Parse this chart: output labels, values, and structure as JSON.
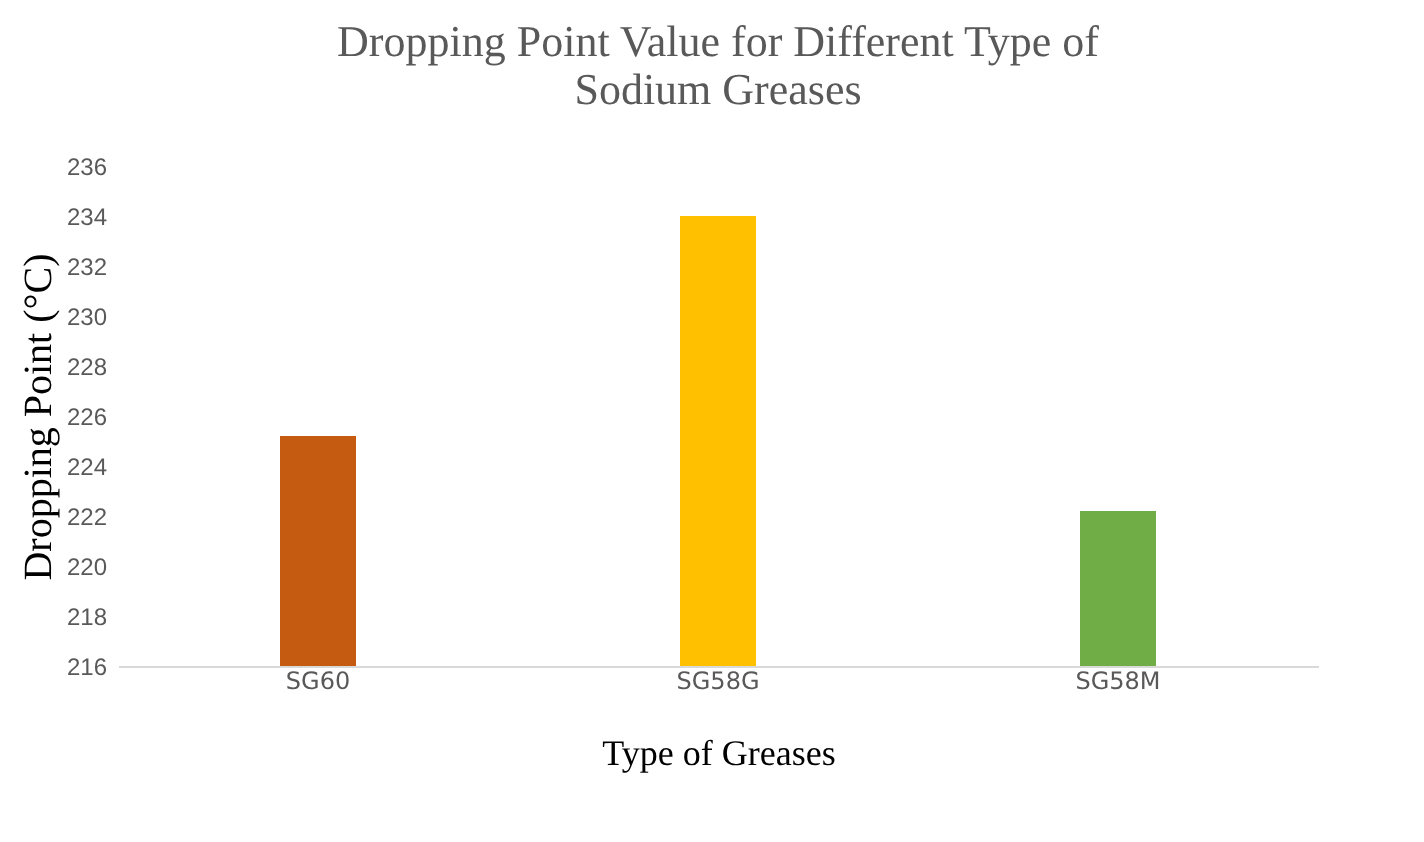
{
  "chart_data": {
    "type": "bar",
    "title": "Dropping Point Value for Different Type of Sodium Greases",
    "xlabel": "Type of Greases",
    "ylabel": "Dropping Point (°C)",
    "categories": [
      "SG60",
      "SG58G",
      "SG58M"
    ],
    "values": [
      225.2,
      234,
      222.2
    ],
    "colors": [
      "#c55a11",
      "#ffc000",
      "#70ad47"
    ],
    "ylim": [
      216,
      236
    ],
    "yticks": [
      216,
      218,
      220,
      222,
      224,
      226,
      228,
      230,
      232,
      234,
      236
    ],
    "grid": false
  }
}
